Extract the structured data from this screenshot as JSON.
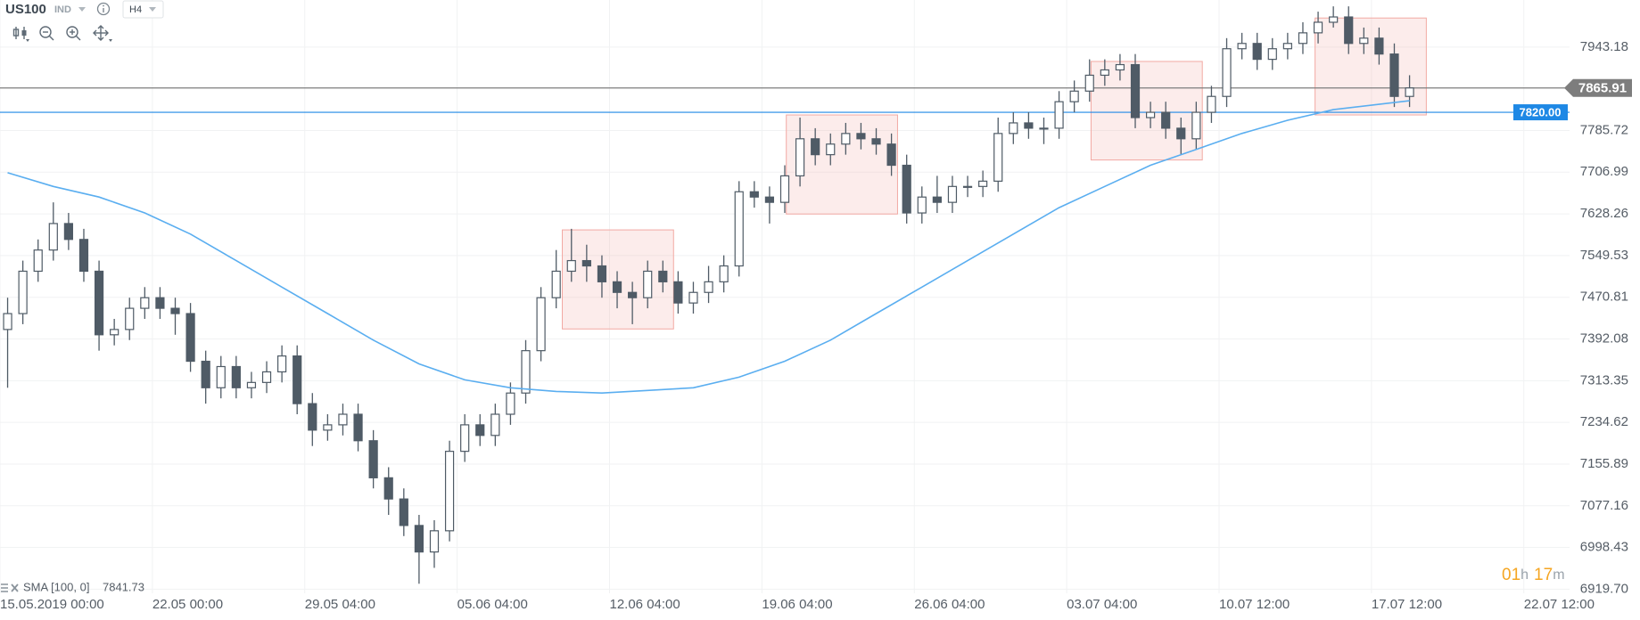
{
  "toolbar": {
    "symbol": "US100",
    "market": "IND",
    "timeframe": "H4"
  },
  "chart_data": {
    "type": "candlestick",
    "x": [
      0,
      1,
      2,
      3,
      4,
      5,
      6,
      7,
      8,
      9,
      10,
      11,
      12,
      13,
      14,
      15,
      16,
      17,
      18,
      19,
      20,
      21,
      22,
      23,
      24,
      25,
      26,
      27,
      28,
      29,
      30,
      31,
      32,
      33,
      34,
      35,
      36,
      37,
      38,
      39,
      40,
      41,
      42,
      43,
      44,
      45,
      46,
      47,
      48,
      49,
      50,
      51,
      52,
      53,
      54,
      55,
      56,
      57,
      58,
      59,
      60,
      61,
      62,
      63,
      64,
      65,
      66,
      67,
      68,
      69,
      70,
      71,
      72,
      73,
      74,
      75,
      76,
      77,
      78,
      79,
      80,
      81,
      82,
      83,
      84,
      85,
      86,
      87,
      88,
      89,
      90,
      91,
      92
    ],
    "open": [
      7410,
      7440,
      7520,
      7560,
      7610,
      7580,
      7520,
      7400,
      7410,
      7450,
      7470,
      7450,
      7440,
      7350,
      7300,
      7340,
      7300,
      7310,
      7330,
      7360,
      7270,
      7220,
      7230,
      7250,
      7200,
      7130,
      7090,
      7040,
      6990,
      7030,
      7180,
      7230,
      7210,
      7250,
      7290,
      7370,
      7470,
      7520,
      7540,
      7530,
      7500,
      7480,
      7470,
      7520,
      7500,
      7460,
      7480,
      7500,
      7530,
      7670,
      7660,
      7650,
      7700,
      7770,
      7740,
      7760,
      7780,
      7770,
      7760,
      7720,
      7630,
      7660,
      7650,
      7680,
      7680,
      7690,
      7780,
      7800,
      7790,
      7790,
      7840,
      7860,
      7890,
      7900,
      7910,
      7810,
      7820,
      7790,
      7770,
      7820,
      7850,
      7940,
      7950,
      7920,
      7940,
      7950,
      7970,
      7990,
      8000,
      7950,
      7960,
      7930,
      7850
    ],
    "high": [
      7470,
      7540,
      7580,
      7650,
      7630,
      7600,
      7540,
      7430,
      7470,
      7490,
      7490,
      7470,
      7460,
      7370,
      7360,
      7360,
      7330,
      7350,
      7380,
      7380,
      7290,
      7250,
      7270,
      7270,
      7220,
      7150,
      7110,
      7060,
      7050,
      7200,
      7250,
      7250,
      7270,
      7310,
      7390,
      7490,
      7560,
      7600,
      7570,
      7550,
      7520,
      7500,
      7540,
      7540,
      7520,
      7500,
      7530,
      7550,
      7690,
      7690,
      7680,
      7720,
      7810,
      7790,
      7780,
      7800,
      7800,
      7790,
      7780,
      7740,
      7680,
      7700,
      7700,
      7700,
      7710,
      7810,
      7820,
      7820,
      7810,
      7860,
      7880,
      7920,
      7920,
      7930,
      7930,
      7840,
      7840,
      7810,
      7840,
      7870,
      7960,
      7970,
      7970,
      7960,
      7970,
      7990,
      8010,
      8020,
      8020,
      7980,
      7980,
      7950,
      7890
    ],
    "low": [
      7300,
      7420,
      7500,
      7540,
      7560,
      7500,
      7370,
      7380,
      7390,
      7430,
      7430,
      7400,
      7330,
      7270,
      7280,
      7280,
      7280,
      7290,
      7310,
      7250,
      7190,
      7200,
      7210,
      7180,
      7110,
      7060,
      7020,
      6930,
      6960,
      7010,
      7160,
      7190,
      7190,
      7230,
      7270,
      7350,
      7450,
      7500,
      7500,
      7470,
      7450,
      7420,
      7450,
      7480,
      7440,
      7440,
      7460,
      7480,
      7510,
      7640,
      7610,
      7630,
      7680,
      7720,
      7720,
      7740,
      7750,
      7740,
      7700,
      7610,
      7610,
      7630,
      7630,
      7660,
      7660,
      7670,
      7760,
      7770,
      7760,
      7770,
      7820,
      7840,
      7870,
      7880,
      7790,
      7790,
      7770,
      7740,
      7750,
      7800,
      7830,
      7920,
      7900,
      7900,
      7920,
      7930,
      7950,
      7980,
      7930,
      7930,
      7910,
      7830,
      7830
    ],
    "close": [
      7440,
      7520,
      7560,
      7610,
      7580,
      7520,
      7400,
      7410,
      7450,
      7470,
      7450,
      7440,
      7350,
      7300,
      7340,
      7300,
      7310,
      7330,
      7360,
      7270,
      7220,
      7230,
      7250,
      7200,
      7130,
      7090,
      7040,
      6990,
      7030,
      7180,
      7230,
      7210,
      7250,
      7290,
      7370,
      7470,
      7520,
      7540,
      7530,
      7500,
      7480,
      7470,
      7520,
      7500,
      7460,
      7480,
      7500,
      7530,
      7670,
      7660,
      7650,
      7700,
      7770,
      7740,
      7760,
      7780,
      7770,
      7760,
      7720,
      7630,
      7660,
      7650,
      7680,
      7680,
      7690,
      7780,
      7800,
      7790,
      7790,
      7840,
      7860,
      7890,
      7900,
      7910,
      7810,
      7820,
      7790,
      7770,
      7820,
      7850,
      7940,
      7950,
      7920,
      7940,
      7950,
      7970,
      7990,
      8000,
      7950,
      7960,
      7930,
      7850,
      7866
    ],
    "up_color": "#ffffff",
    "down_color": "#4f5b66",
    "line_color": "#4f5b66",
    "xlim": [
      -0.5,
      102.5
    ],
    "xticks": [
      {
        "value": -0.5,
        "label": "15.05.2019 00:00"
      },
      {
        "value": 9.5,
        "label": "22.05 00:00"
      },
      {
        "value": 19.5,
        "label": "29.05 04:00"
      },
      {
        "value": 29.5,
        "label": "05.06 04:00"
      },
      {
        "value": 39.5,
        "label": "12.06 04:00"
      },
      {
        "value": 49.5,
        "label": "19.06 04:00"
      },
      {
        "value": 59.5,
        "label": "26.06 04:00"
      },
      {
        "value": 69.5,
        "label": "03.07 04:00"
      },
      {
        "value": 79.5,
        "label": "10.07 12:00"
      },
      {
        "value": 89.5,
        "label": "17.07 12:00"
      },
      {
        "value": 99.5,
        "label": "22.07 12:00"
      }
    ],
    "ylim": [
      6912,
      8032
    ],
    "yticks": [
      7943.18,
      7785.72,
      7706.99,
      7628.26,
      7549.53,
      7470.81,
      7392.08,
      7313.35,
      7234.62,
      7155.89,
      7077.16,
      6998.43,
      {
        "value": 6919.7,
        "label": "6919.70"
      }
    ],
    "grid": true,
    "sma": {
      "name": "SMA [100, 0]",
      "color": "#5aaef0",
      "x": [
        0,
        3,
        6,
        9,
        12,
        15,
        18,
        21,
        24,
        27,
        30,
        33,
        36,
        39,
        42,
        45,
        48,
        51,
        54,
        57,
        60,
        63,
        66,
        69,
        72,
        75,
        78,
        81,
        84,
        87,
        90,
        92
      ],
      "values": [
        7706,
        7680,
        7660,
        7630,
        7590,
        7540,
        7490,
        7440,
        7390,
        7345,
        7315,
        7300,
        7293,
        7290,
        7295,
        7300,
        7320,
        7350,
        7390,
        7440,
        7490,
        7540,
        7590,
        7640,
        7680,
        7720,
        7750,
        7780,
        7805,
        7825,
        7835,
        7841.73
      ]
    },
    "price_lines": [
      {
        "value": 7865.91,
        "color": "#7d7d7d"
      },
      {
        "value": 7820,
        "label": "7820.00",
        "color": "#1e88e5"
      }
    ],
    "zones": [
      {
        "x": [
          36.4,
          43.7
        ],
        "y": [
          7411,
          7598
        ]
      },
      {
        "x": [
          51.1,
          58.4
        ],
        "y": [
          7628,
          7815
        ]
      },
      {
        "x": [
          71.1,
          78.4
        ],
        "y": [
          7730,
          7916
        ]
      },
      {
        "x": [
          85.8,
          93.1
        ],
        "y": [
          7815,
          7998
        ]
      }
    ],
    "zone_color": "#f2a9a3"
  },
  "timer": {
    "hours": "01",
    "hours_unit": "h",
    "minutes": "17",
    "minutes_unit": "m"
  }
}
